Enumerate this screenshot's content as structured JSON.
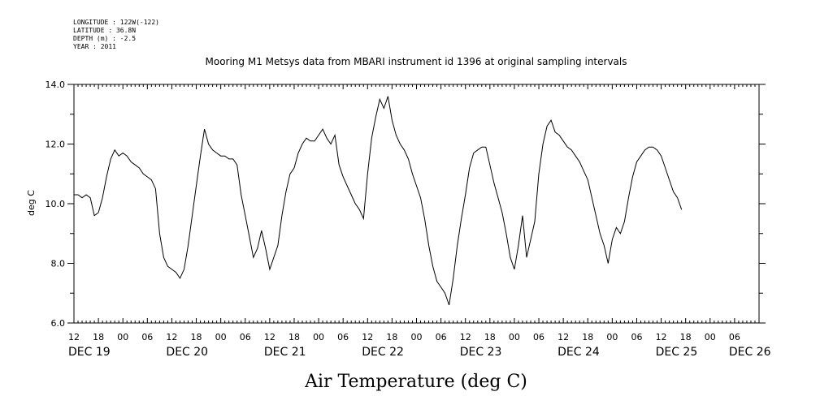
{
  "header": {
    "longitude": "LONGITUDE : 122W(-122)",
    "latitude": "LATITUDE : 36.8N",
    "depth": "DEPTH (m) : -2.5",
    "year": "YEAR : 2011"
  },
  "chart_data": {
    "type": "line",
    "title": "Mooring M1 Metsys data from MBARI instrument id 1396 at original sampling intervals",
    "xlabel": "Air Temperature (deg C)",
    "ylabel": "deg C",
    "ylim": [
      6.0,
      14.0
    ],
    "yticks": [
      6.0,
      8.0,
      10.0,
      12.0,
      14.0
    ],
    "yticklabels": [
      "6.0",
      "8.0",
      "10.0",
      "12.0",
      "14.0"
    ],
    "xlim_hours": [
      12,
      180
    ],
    "hour_ticks": [
      "12",
      "18",
      "00",
      "06",
      "12",
      "18",
      "00",
      "06",
      "12",
      "18",
      "00",
      "06",
      "12",
      "18",
      "00",
      "06",
      "12",
      "18",
      "00",
      "06",
      "12",
      "18",
      "00",
      "06",
      "12",
      "18",
      "00",
      "06"
    ],
    "day_labels": [
      {
        "label": "DEC 19",
        "hour": 12
      },
      {
        "label": "DEC 20",
        "hour": 36
      },
      {
        "label": "DEC 21",
        "hour": 60
      },
      {
        "label": "DEC 22",
        "hour": 84
      },
      {
        "label": "DEC 23",
        "hour": 108
      },
      {
        "label": "DEC 24",
        "hour": 132
      },
      {
        "label": "DEC 25",
        "hour": 156
      },
      {
        "label": "DEC 26",
        "hour": 174
      }
    ],
    "grid": false,
    "series": [
      {
        "values": [
          [
            12,
            10.3
          ],
          [
            13,
            10.3
          ],
          [
            14,
            10.2
          ],
          [
            15,
            10.3
          ],
          [
            16,
            10.2
          ],
          [
            17,
            9.6
          ],
          [
            18,
            9.7
          ],
          [
            19,
            10.2
          ],
          [
            20,
            10.9
          ],
          [
            21,
            11.5
          ],
          [
            22,
            11.8
          ],
          [
            23,
            11.6
          ],
          [
            24,
            11.7
          ],
          [
            25,
            11.6
          ],
          [
            26,
            11.4
          ],
          [
            27,
            11.3
          ],
          [
            28,
            11.2
          ],
          [
            29,
            11.0
          ],
          [
            30,
            10.9
          ],
          [
            31,
            10.8
          ],
          [
            32,
            10.5
          ],
          [
            33,
            9.0
          ],
          [
            34,
            8.2
          ],
          [
            35,
            7.9
          ],
          [
            36,
            7.8
          ],
          [
            37,
            7.7
          ],
          [
            38,
            7.5
          ],
          [
            39,
            7.8
          ],
          [
            40,
            8.6
          ],
          [
            41,
            9.6
          ],
          [
            42,
            10.6
          ],
          [
            43,
            11.6
          ],
          [
            44,
            12.5
          ],
          [
            45,
            12.0
          ],
          [
            46,
            11.8
          ],
          [
            47,
            11.7
          ],
          [
            48,
            11.6
          ],
          [
            49,
            11.6
          ],
          [
            50,
            11.5
          ],
          [
            51,
            11.5
          ],
          [
            52,
            11.3
          ],
          [
            53,
            10.3
          ],
          [
            54,
            9.6
          ],
          [
            55,
            8.9
          ],
          [
            56,
            8.2
          ],
          [
            57,
            8.5
          ],
          [
            58,
            9.1
          ],
          [
            59,
            8.5
          ],
          [
            60,
            7.8
          ],
          [
            61,
            8.2
          ],
          [
            62,
            8.6
          ],
          [
            63,
            9.6
          ],
          [
            64,
            10.4
          ],
          [
            65,
            11.0
          ],
          [
            66,
            11.2
          ],
          [
            67,
            11.7
          ],
          [
            68,
            12.0
          ],
          [
            69,
            12.2
          ],
          [
            70,
            12.1
          ],
          [
            71,
            12.1
          ],
          [
            72,
            12.3
          ],
          [
            73,
            12.5
          ],
          [
            74,
            12.2
          ],
          [
            75,
            12.0
          ],
          [
            76,
            12.3
          ],
          [
            77,
            11.3
          ],
          [
            78,
            10.9
          ],
          [
            79,
            10.6
          ],
          [
            80,
            10.3
          ],
          [
            81,
            10.0
          ],
          [
            82,
            9.8
          ],
          [
            83,
            9.5
          ],
          [
            84,
            11.0
          ],
          [
            85,
            12.2
          ],
          [
            86,
            12.9
          ],
          [
            87,
            13.5
          ],
          [
            88,
            13.2
          ],
          [
            89,
            13.6
          ],
          [
            90,
            12.8
          ],
          [
            91,
            12.3
          ],
          [
            92,
            12.0
          ],
          [
            93,
            11.8
          ],
          [
            94,
            11.5
          ],
          [
            95,
            11.0
          ],
          [
            96,
            10.6
          ],
          [
            97,
            10.2
          ],
          [
            98,
            9.5
          ],
          [
            99,
            8.6
          ],
          [
            100,
            7.9
          ],
          [
            101,
            7.4
          ],
          [
            102,
            7.2
          ],
          [
            103,
            7.0
          ],
          [
            104,
            6.6
          ],
          [
            105,
            7.5
          ],
          [
            106,
            8.6
          ],
          [
            107,
            9.5
          ],
          [
            108,
            10.3
          ],
          [
            109,
            11.2
          ],
          [
            110,
            11.7
          ],
          [
            111,
            11.8
          ],
          [
            112,
            11.9
          ],
          [
            113,
            11.9
          ],
          [
            114,
            11.3
          ],
          [
            115,
            10.7
          ],
          [
            116,
            10.2
          ],
          [
            117,
            9.7
          ],
          [
            118,
            9.0
          ],
          [
            119,
            8.2
          ],
          [
            120,
            7.8
          ],
          [
            121,
            8.6
          ],
          [
            122,
            9.6
          ],
          [
            123,
            8.2
          ],
          [
            124,
            8.8
          ],
          [
            125,
            9.4
          ],
          [
            126,
            11.0
          ],
          [
            127,
            12.0
          ],
          [
            128,
            12.6
          ],
          [
            129,
            12.8
          ],
          [
            130,
            12.4
          ],
          [
            131,
            12.3
          ],
          [
            132,
            12.1
          ],
          [
            133,
            11.9
          ],
          [
            134,
            11.8
          ],
          [
            135,
            11.6
          ],
          [
            136,
            11.4
          ],
          [
            137,
            11.1
          ],
          [
            138,
            10.8
          ],
          [
            139,
            10.2
          ],
          [
            140,
            9.6
          ],
          [
            141,
            9.0
          ],
          [
            142,
            8.6
          ],
          [
            143,
            8.0
          ],
          [
            144,
            8.8
          ],
          [
            145,
            9.2
          ],
          [
            146,
            9.0
          ],
          [
            147,
            9.4
          ],
          [
            148,
            10.2
          ],
          [
            149,
            10.9
          ],
          [
            150,
            11.4
          ],
          [
            151,
            11.6
          ],
          [
            152,
            11.8
          ],
          [
            153,
            11.9
          ],
          [
            154,
            11.9
          ],
          [
            155,
            11.8
          ],
          [
            156,
            11.6
          ],
          [
            157,
            11.2
          ],
          [
            158,
            10.8
          ],
          [
            159,
            10.4
          ],
          [
            160,
            10.2
          ],
          [
            161,
            9.8
          ]
        ]
      }
    ]
  }
}
